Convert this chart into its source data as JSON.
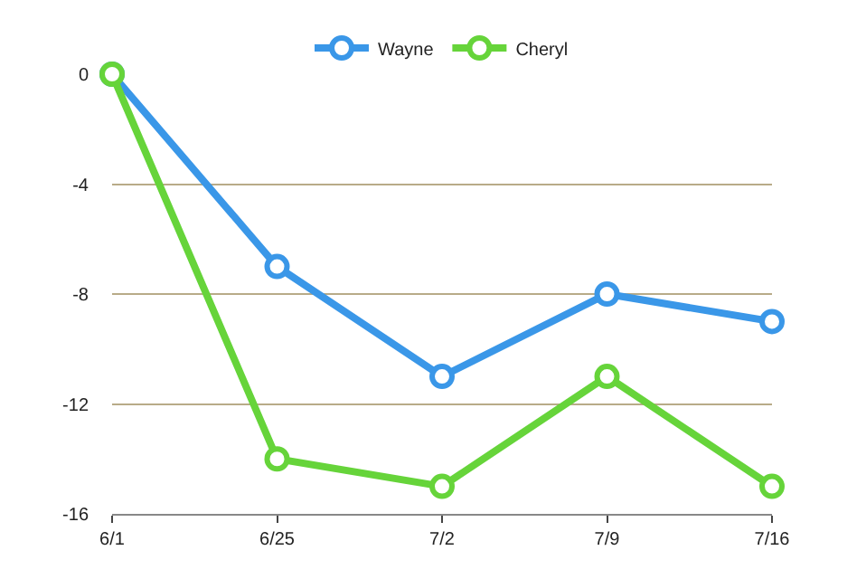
{
  "chart_data": {
    "type": "line",
    "categories": [
      "6/1",
      "6/25",
      "7/2",
      "7/9",
      "7/16"
    ],
    "series": [
      {
        "name": "Wayne",
        "color": "#3a97e8",
        "values": [
          0,
          -7,
          -11,
          -8,
          -9
        ]
      },
      {
        "name": "Cheryl",
        "color": "#66d43a",
        "values": [
          0,
          -14,
          -15,
          -11,
          -15
        ]
      }
    ],
    "ylim": [
      -16,
      0
    ],
    "yticks": [
      0,
      -4,
      -8,
      -12,
      -16
    ],
    "grid": "y",
    "legend": "top",
    "marker": "circle",
    "line_style": "solid"
  }
}
